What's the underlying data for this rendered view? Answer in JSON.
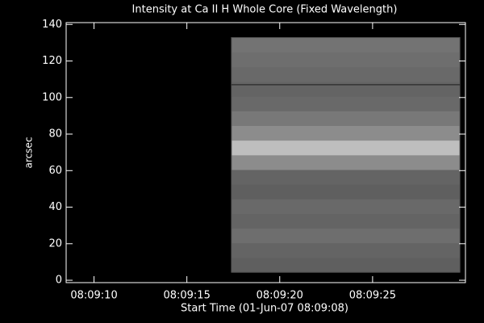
{
  "chart_data": {
    "type": "image",
    "title": "Intensity at Ca II H Whole Core (Fixed Wavelength)",
    "xlabel": "Start Time (01-Jun-07 08:09:08)",
    "ylabel": "arcsec",
    "xlim": [
      8.5,
      30
    ],
    "xticks": [
      {
        "value": 10,
        "label": "08:09:10"
      },
      {
        "value": 15,
        "label": "08:09:15"
      },
      {
        "value": 20,
        "label": "08:09:20"
      },
      {
        "value": 25,
        "label": "08:09:25"
      }
    ],
    "ylim": [
      -1.3,
      141
    ],
    "yticks": [
      0,
      20,
      40,
      60,
      80,
      100,
      120,
      140
    ],
    "image": {
      "x": [
        17.4,
        29.7
      ],
      "y": [
        4.4,
        132.8
      ],
      "rows": [
        95,
        100,
        110,
        100,
        105,
        95,
        100,
        140,
        190,
        140,
        120,
        105,
        100,
        105,
        110,
        115
      ],
      "dark_row": 107
    }
  }
}
